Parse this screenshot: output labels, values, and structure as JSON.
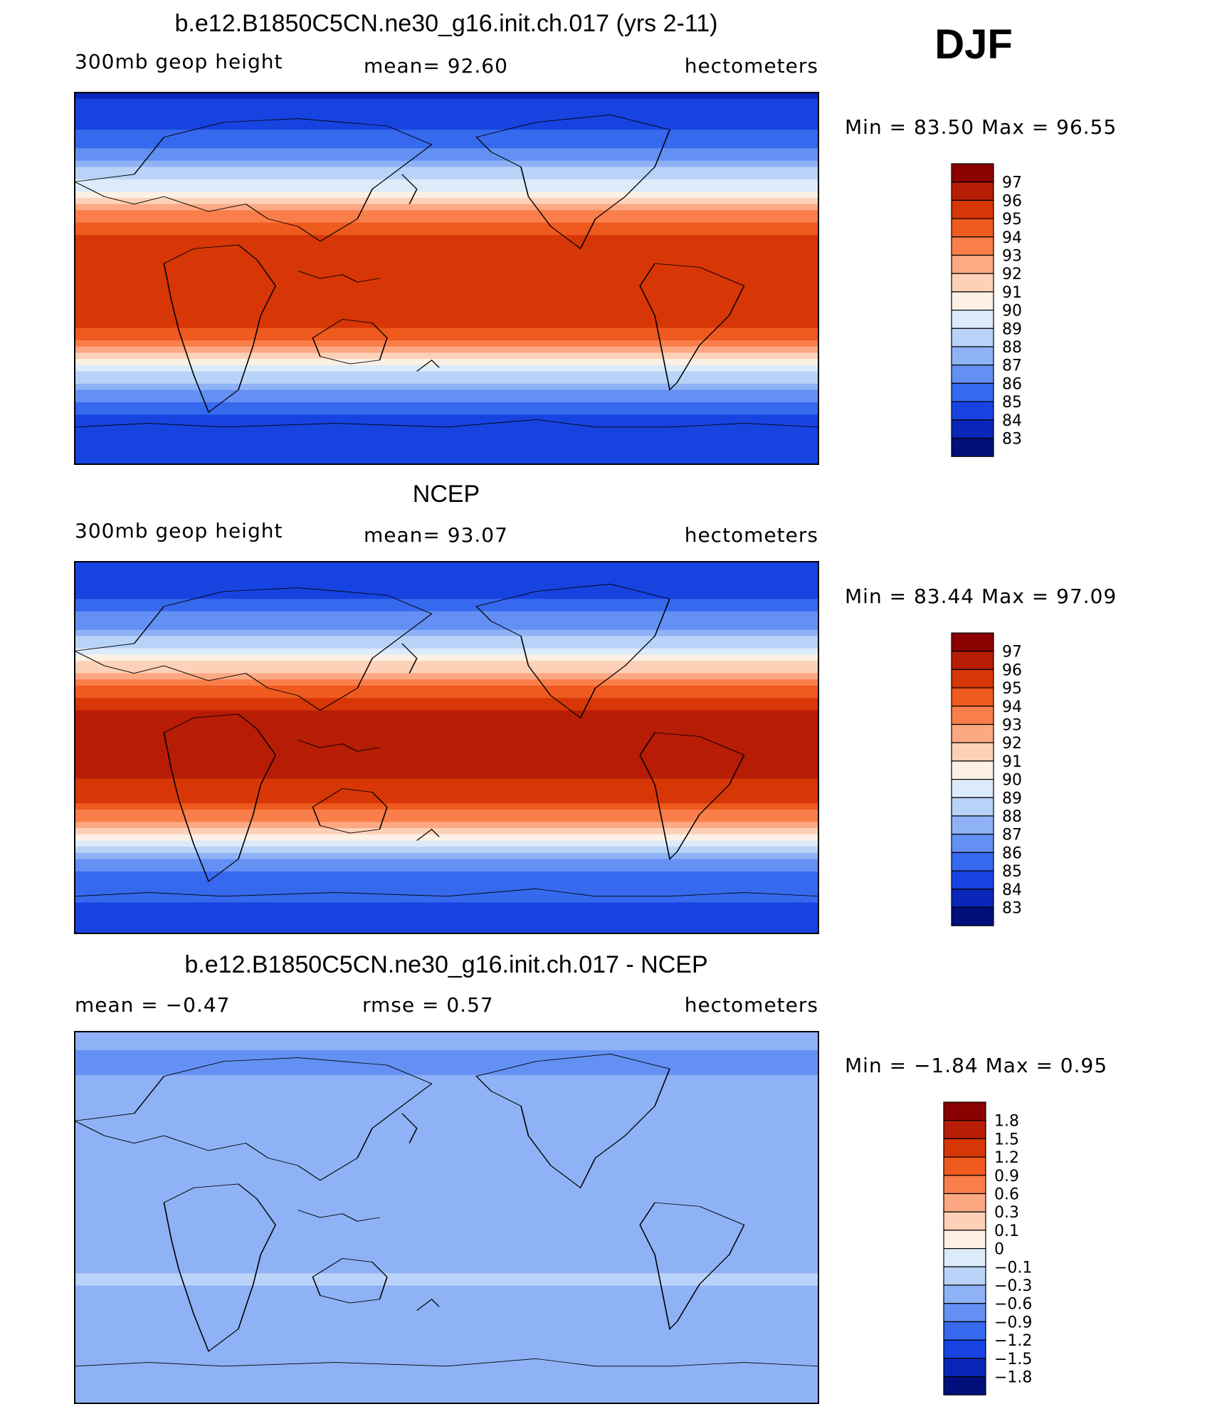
{
  "season": "DJF",
  "chart_data": [
    {
      "type": "heatmap",
      "title": "b.e12.B1850C5CN.ne30_g16.init.ch.017 (yrs 2-11)",
      "variable": "300mb geop height",
      "stat_text": "mean=  92.60",
      "units": "hectometers",
      "minmax_text": "Min =   83.50 Max =   96.55",
      "min": 83.5,
      "max": 96.55,
      "mean": 92.6,
      "colorbar": {
        "labels": [
          "97",
          "96",
          "95",
          "94",
          "93",
          "92",
          "91",
          "90",
          "89",
          "88",
          "87",
          "86",
          "85",
          "84",
          "83"
        ],
        "colors": [
          "#8b0000",
          "#b71c05",
          "#d73606",
          "#ef5a1e",
          "#f97e4a",
          "#fca882",
          "#fdd1b8",
          "#fdf0e4",
          "#dcebfa",
          "#b9d2f8",
          "#8fb2f6",
          "#6490f4",
          "#3769ee",
          "#1744e1",
          "#0a26b8",
          "#000f7a"
        ]
      },
      "profile": [
        {
          "lat": 90,
          "v": 83.9
        },
        {
          "lat": 75,
          "v": 84.6
        },
        {
          "lat": 60,
          "v": 86.4
        },
        {
          "lat": 45,
          "v": 89.6
        },
        {
          "lat": 35,
          "v": 92.2
        },
        {
          "lat": 25,
          "v": 94.6
        },
        {
          "lat": 15,
          "v": 95.7
        },
        {
          "lat": 0,
          "v": 95.9
        },
        {
          "lat": -15,
          "v": 95.6
        },
        {
          "lat": -25,
          "v": 94.8
        },
        {
          "lat": -35,
          "v": 92.6
        },
        {
          "lat": -45,
          "v": 89.4
        },
        {
          "lat": -55,
          "v": 86.6
        },
        {
          "lat": -65,
          "v": 85.0
        },
        {
          "lat": -90,
          "v": 84.6
        }
      ]
    },
    {
      "type": "heatmap",
      "title": "NCEP",
      "variable": "300mb geop height",
      "stat_text": "mean=  93.07",
      "units": "hectometers",
      "minmax_text": "Min =   83.44 Max =   97.09",
      "min": 83.44,
      "max": 97.09,
      "mean": 93.07,
      "colorbar": {
        "labels": [
          "97",
          "96",
          "95",
          "94",
          "93",
          "92",
          "91",
          "90",
          "89",
          "88",
          "87",
          "86",
          "85",
          "84",
          "83"
        ],
        "colors": [
          "#8b0000",
          "#b71c05",
          "#d73606",
          "#ef5a1e",
          "#f97e4a",
          "#fca882",
          "#fdd1b8",
          "#fdf0e4",
          "#dcebfa",
          "#b9d2f8",
          "#8fb2f6",
          "#6490f4",
          "#3769ee",
          "#1744e1",
          "#0a26b8",
          "#000f7a"
        ]
      },
      "profile": [
        {
          "lat": 90,
          "v": 84.0
        },
        {
          "lat": 75,
          "v": 84.8
        },
        {
          "lat": 60,
          "v": 86.6
        },
        {
          "lat": 45,
          "v": 89.9
        },
        {
          "lat": 35,
          "v": 92.6
        },
        {
          "lat": 25,
          "v": 95.0
        },
        {
          "lat": 15,
          "v": 96.2
        },
        {
          "lat": 0,
          "v": 96.3
        },
        {
          "lat": -15,
          "v": 96.1
        },
        {
          "lat": -25,
          "v": 95.3
        },
        {
          "lat": -35,
          "v": 93.0
        },
        {
          "lat": -45,
          "v": 89.8
        },
        {
          "lat": -55,
          "v": 86.9
        },
        {
          "lat": -65,
          "v": 85.2
        },
        {
          "lat": -90,
          "v": 84.7
        }
      ]
    },
    {
      "type": "heatmap",
      "title": "b.e12.B1850C5CN.ne30_g16.init.ch.017 - NCEP",
      "variable_text": "mean =   −0.47",
      "stat_text": "rmse =    0.57",
      "units": "hectometers",
      "minmax_text": "Min =   −1.84 Max =    0.95",
      "min": -1.84,
      "max": 0.95,
      "mean": -0.47,
      "rmse": 0.57,
      "colorbar": {
        "labels": [
          "1.8",
          "1.5",
          "1.2",
          "0.9",
          "0.6",
          "0.3",
          "0.1",
          "0",
          "−0.1",
          "−0.3",
          "−0.6",
          "−0.9",
          "−1.2",
          "−1.5",
          "−1.8"
        ],
        "colors": [
          "#8b0000",
          "#b71c05",
          "#d73606",
          "#ef5a1e",
          "#f97e4a",
          "#fca882",
          "#fdd1b8",
          "#fdf0e4",
          "#dcebfa",
          "#b9d2f8",
          "#8fb2f6",
          "#6490f4",
          "#3769ee",
          "#1744e1",
          "#0a26b8",
          "#000f7a"
        ]
      },
      "profile": [
        {
          "lat": 90,
          "v": -0.5
        },
        {
          "lat": 75,
          "v": -0.7
        },
        {
          "lat": 60,
          "v": -0.45
        },
        {
          "lat": 45,
          "v": -0.6
        },
        {
          "lat": 30,
          "v": -0.35
        },
        {
          "lat": 15,
          "v": -0.5
        },
        {
          "lat": 0,
          "v": -0.55
        },
        {
          "lat": -15,
          "v": -0.45
        },
        {
          "lat": -30,
          "v": -0.25
        },
        {
          "lat": -45,
          "v": -0.55
        },
        {
          "lat": -60,
          "v": -0.4
        },
        {
          "lat": -75,
          "v": -0.3
        },
        {
          "lat": -90,
          "v": -0.45
        }
      ]
    }
  ]
}
